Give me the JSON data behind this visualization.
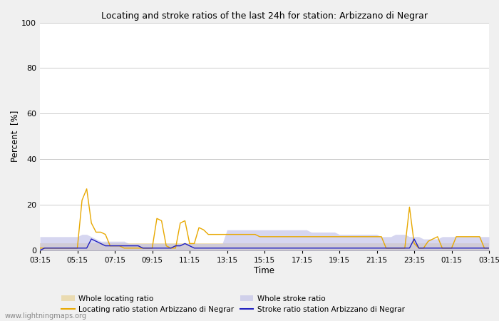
{
  "title": "Locating and stroke ratios of the last 24h for station: Arbizzano di Negrar",
  "xlabel": "Time",
  "ylabel": "Percent  [%]",
  "watermark": "www.lightningmaps.org",
  "ylim": [
    0,
    100
  ],
  "yticks": [
    0,
    20,
    40,
    60,
    80,
    100
  ],
  "time_labels": [
    "03:15",
    "05:15",
    "07:15",
    "09:15",
    "11:15",
    "13:15",
    "15:15",
    "17:15",
    "19:15",
    "21:15",
    "23:15",
    "01:15",
    "03:15"
  ],
  "colors": {
    "whole_locating_fill": "#e8d090",
    "whole_stroke_fill": "#c0c0e8",
    "locating_station_line": "#e8a800",
    "stroke_station_line": "#2020c0",
    "grid": "#cccccc",
    "background": "#f0f0f0",
    "plot_bg": "#ffffff"
  },
  "n_points": 97,
  "whole_locating": [
    3,
    3,
    3,
    3,
    3,
    3,
    3,
    3,
    3,
    3,
    3,
    3,
    3,
    3,
    3,
    3,
    3,
    3,
    3,
    3,
    3,
    3,
    3,
    3,
    3,
    3,
    3,
    3,
    3,
    3,
    3,
    3,
    3,
    3,
    3,
    3,
    3,
    3,
    3,
    3,
    3,
    3,
    3,
    3,
    3,
    3,
    3,
    3,
    3,
    3,
    3,
    3,
    3,
    3,
    3,
    3,
    3,
    3,
    3,
    3,
    3,
    3,
    3,
    3,
    3,
    3,
    3,
    3,
    3,
    3,
    3,
    3,
    3,
    3,
    3,
    3,
    3,
    3,
    3,
    3,
    3,
    3,
    3,
    3,
    3,
    3,
    3,
    3,
    3,
    3,
    3,
    3,
    3,
    3,
    3,
    3,
    3
  ],
  "locating_station": [
    1,
    1,
    1,
    1,
    1,
    1,
    1,
    1,
    1,
    22,
    27,
    12,
    8,
    8,
    7,
    2,
    2,
    2,
    1,
    1,
    1,
    1,
    1,
    1,
    1,
    14,
    13,
    2,
    1,
    1,
    12,
    13,
    3,
    3,
    10,
    9,
    7,
    7,
    7,
    7,
    7,
    7,
    7,
    7,
    7,
    7,
    7,
    6,
    6,
    6,
    6,
    6,
    6,
    6,
    6,
    6,
    6,
    6,
    6,
    6,
    6,
    6,
    6,
    6,
    6,
    6,
    6,
    6,
    6,
    6,
    6,
    6,
    6,
    6,
    1,
    1,
    1,
    1,
    1,
    19,
    3,
    1,
    1,
    4,
    5,
    6,
    1,
    1,
    1,
    6,
    6,
    6,
    6,
    6,
    6,
    1,
    1
  ],
  "whole_stroke": [
    6,
    6,
    6,
    6,
    6,
    6,
    6,
    6,
    6,
    7,
    7,
    6,
    5,
    4,
    4,
    4,
    4,
    4,
    4,
    3,
    3,
    3,
    3,
    3,
    3,
    3,
    3,
    3,
    3,
    3,
    3,
    3,
    3,
    3,
    3,
    3,
    3,
    3,
    3,
    3,
    9,
    9,
    9,
    9,
    9,
    9,
    9,
    9,
    9,
    9,
    9,
    9,
    9,
    9,
    9,
    9,
    9,
    9,
    8,
    8,
    8,
    8,
    8,
    8,
    7,
    7,
    7,
    7,
    7,
    7,
    7,
    7,
    7,
    6,
    6,
    6,
    7,
    7,
    7,
    6,
    6,
    6,
    5,
    5,
    5,
    5,
    6,
    6,
    6,
    6,
    6,
    6,
    6,
    6,
    6,
    6,
    6
  ],
  "stroke_station": [
    0,
    1,
    1,
    1,
    1,
    1,
    1,
    1,
    1,
    1,
    1,
    5,
    4,
    3,
    2,
    2,
    2,
    2,
    2,
    2,
    2,
    2,
    1,
    1,
    1,
    1,
    1,
    1,
    1,
    2,
    2,
    3,
    2,
    1,
    1,
    1,
    1,
    1,
    1,
    1,
    1,
    1,
    1,
    1,
    1,
    1,
    1,
    1,
    1,
    1,
    1,
    1,
    1,
    1,
    1,
    1,
    1,
    1,
    1,
    1,
    1,
    1,
    1,
    1,
    1,
    1,
    1,
    1,
    1,
    1,
    1,
    1,
    1,
    1,
    1,
    1,
    1,
    1,
    1,
    1,
    5,
    1,
    1,
    1,
    1,
    1,
    1,
    1,
    1,
    1,
    1,
    1,
    1,
    1,
    1,
    1,
    1
  ],
  "legend_labels": {
    "whole_locating": "Whole locating ratio",
    "locating_station": "Locating ratio station Arbizzano di Negrar",
    "whole_stroke": "Whole stroke ratio",
    "stroke_station": "Stroke ratio station Arbizzano di Negrar"
  }
}
